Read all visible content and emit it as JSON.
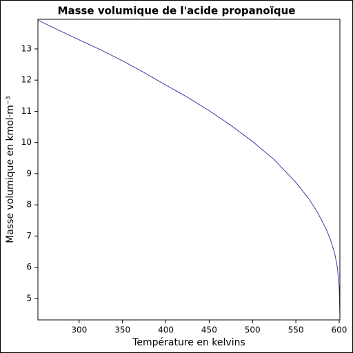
{
  "chart_data": {
    "type": "line",
    "title": "Masse volumique de l'acide propanoïque",
    "xlabel": "Température en kelvins",
    "ylabel": "Masse volumique en kmol·m⁻³",
    "x": [
      252.45,
      275,
      300,
      325,
      350,
      375,
      400,
      425,
      450,
      475,
      500,
      525,
      550,
      565,
      575,
      585,
      590,
      595,
      598,
      600,
      600.81
    ],
    "values": [
      13.92,
      13.62,
      13.29,
      12.97,
      12.62,
      12.24,
      11.84,
      11.45,
      11.02,
      10.55,
      10.03,
      9.45,
      8.72,
      8.19,
      7.76,
      7.22,
      6.88,
      6.42,
      5.98,
      5.35,
      4.45
    ],
    "color": "#3a3aa8",
    "xlim": [
      252.45,
      600.81
    ],
    "ylim": [
      4.31,
      13.95
    ],
    "xticks": [
      300,
      350,
      400,
      450,
      500,
      550,
      600
    ],
    "yticks": [
      5,
      6,
      7,
      8,
      9,
      10,
      11,
      12,
      13
    ]
  }
}
